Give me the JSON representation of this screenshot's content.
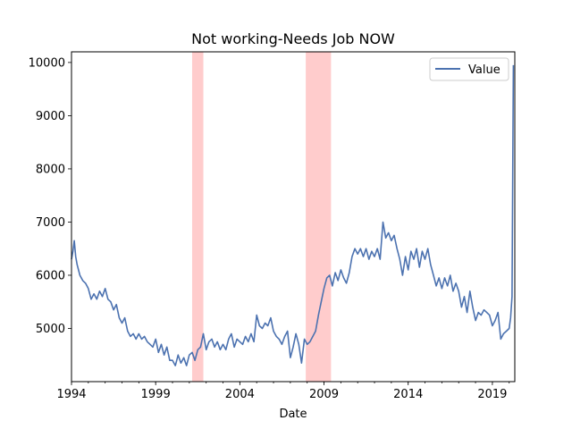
{
  "chart_data": {
    "type": "line",
    "title": "Not working-Needs Job NOW",
    "xlabel": "Date",
    "ylabel": "",
    "x_range": [
      "1994-01",
      "2020-05"
    ],
    "ylim": [
      4000,
      10200
    ],
    "x_ticks": [
      {
        "label": "1994",
        "date": "1994-01"
      },
      {
        "label": "1999",
        "date": "1999-01"
      },
      {
        "label": "2004",
        "date": "2004-01"
      },
      {
        "label": "2009",
        "date": "2009-01"
      },
      {
        "label": "2014",
        "date": "2014-01"
      },
      {
        "label": "2019",
        "date": "2019-01"
      }
    ],
    "y_ticks": [
      5000,
      6000,
      7000,
      8000,
      9000,
      10000
    ],
    "grid": false,
    "legend": {
      "location": "upper right",
      "entries": [
        "Value"
      ]
    },
    "recessions": [
      {
        "start": "2001-03",
        "end": "2001-11"
      },
      {
        "start": "2007-12",
        "end": "2009-06"
      }
    ],
    "series": [
      {
        "name": "Value",
        "color": "#4c72b0",
        "points": [
          [
            "1994-01",
            6300
          ],
          [
            "1994-02",
            6450
          ],
          [
            "1994-03",
            6650
          ],
          [
            "1994-04",
            6350
          ],
          [
            "1994-05",
            6200
          ],
          [
            "1994-07",
            6000
          ],
          [
            "1994-09",
            5900
          ],
          [
            "1994-11",
            5850
          ],
          [
            "1995-01",
            5750
          ],
          [
            "1995-03",
            5550
          ],
          [
            "1995-05",
            5650
          ],
          [
            "1995-07",
            5550
          ],
          [
            "1995-09",
            5700
          ],
          [
            "1995-11",
            5600
          ],
          [
            "1996-01",
            5750
          ],
          [
            "1996-03",
            5550
          ],
          [
            "1996-05",
            5500
          ],
          [
            "1996-07",
            5350
          ],
          [
            "1996-09",
            5450
          ],
          [
            "1996-11",
            5200
          ],
          [
            "1997-01",
            5100
          ],
          [
            "1997-03",
            5200
          ],
          [
            "1997-05",
            4950
          ],
          [
            "1997-07",
            4850
          ],
          [
            "1997-09",
            4900
          ],
          [
            "1997-11",
            4800
          ],
          [
            "1998-01",
            4900
          ],
          [
            "1998-03",
            4800
          ],
          [
            "1998-05",
            4850
          ],
          [
            "1998-07",
            4750
          ],
          [
            "1998-09",
            4700
          ],
          [
            "1998-11",
            4650
          ],
          [
            "1999-01",
            4800
          ],
          [
            "1999-03",
            4550
          ],
          [
            "1999-05",
            4700
          ],
          [
            "1999-07",
            4500
          ],
          [
            "1999-09",
            4650
          ],
          [
            "1999-11",
            4400
          ],
          [
            "2000-01",
            4400
          ],
          [
            "2000-03",
            4300
          ],
          [
            "2000-05",
            4500
          ],
          [
            "2000-07",
            4350
          ],
          [
            "2000-09",
            4450
          ],
          [
            "2000-11",
            4300
          ],
          [
            "2001-01",
            4500
          ],
          [
            "2001-03",
            4550
          ],
          [
            "2001-05",
            4400
          ],
          [
            "2001-07",
            4600
          ],
          [
            "2001-09",
            4650
          ],
          [
            "2001-11",
            4900
          ],
          [
            "2002-01",
            4600
          ],
          [
            "2002-03",
            4750
          ],
          [
            "2002-05",
            4800
          ],
          [
            "2002-07",
            4650
          ],
          [
            "2002-09",
            4750
          ],
          [
            "2002-11",
            4600
          ],
          [
            "2003-01",
            4700
          ],
          [
            "2003-03",
            4600
          ],
          [
            "2003-05",
            4800
          ],
          [
            "2003-07",
            4900
          ],
          [
            "2003-09",
            4650
          ],
          [
            "2003-11",
            4800
          ],
          [
            "2004-01",
            4750
          ],
          [
            "2004-03",
            4700
          ],
          [
            "2004-05",
            4850
          ],
          [
            "2004-07",
            4750
          ],
          [
            "2004-09",
            4900
          ],
          [
            "2004-11",
            4750
          ],
          [
            "2005-01",
            5250
          ],
          [
            "2005-03",
            5050
          ],
          [
            "2005-05",
            5000
          ],
          [
            "2005-07",
            5100
          ],
          [
            "2005-09",
            5050
          ],
          [
            "2005-11",
            5200
          ],
          [
            "2006-01",
            4950
          ],
          [
            "2006-03",
            4850
          ],
          [
            "2006-05",
            4800
          ],
          [
            "2006-07",
            4700
          ],
          [
            "2006-09",
            4850
          ],
          [
            "2006-11",
            4950
          ],
          [
            "2007-01",
            4450
          ],
          [
            "2007-03",
            4650
          ],
          [
            "2007-05",
            4900
          ],
          [
            "2007-07",
            4700
          ],
          [
            "2007-09",
            4350
          ],
          [
            "2007-11",
            4800
          ],
          [
            "2008-01",
            4700
          ],
          [
            "2008-03",
            4750
          ],
          [
            "2008-05",
            4850
          ],
          [
            "2008-07",
            4950
          ],
          [
            "2008-09",
            5250
          ],
          [
            "2008-11",
            5500
          ],
          [
            "2009-01",
            5750
          ],
          [
            "2009-03",
            5950
          ],
          [
            "2009-05",
            6000
          ],
          [
            "2009-07",
            5800
          ],
          [
            "2009-09",
            6050
          ],
          [
            "2009-11",
            5900
          ],
          [
            "2010-01",
            6100
          ],
          [
            "2010-03",
            5950
          ],
          [
            "2010-05",
            5850
          ],
          [
            "2010-07",
            6050
          ],
          [
            "2010-09",
            6350
          ],
          [
            "2010-11",
            6500
          ],
          [
            "2011-01",
            6400
          ],
          [
            "2011-03",
            6500
          ],
          [
            "2011-05",
            6350
          ],
          [
            "2011-07",
            6500
          ],
          [
            "2011-09",
            6300
          ],
          [
            "2011-11",
            6450
          ],
          [
            "2012-01",
            6350
          ],
          [
            "2012-03",
            6500
          ],
          [
            "2012-05",
            6300
          ],
          [
            "2012-07",
            7000
          ],
          [
            "2012-09",
            6700
          ],
          [
            "2012-11",
            6800
          ],
          [
            "2013-01",
            6650
          ],
          [
            "2013-03",
            6750
          ],
          [
            "2013-05",
            6500
          ],
          [
            "2013-07",
            6300
          ],
          [
            "2013-09",
            6000
          ],
          [
            "2013-11",
            6350
          ],
          [
            "2014-01",
            6100
          ],
          [
            "2014-03",
            6450
          ],
          [
            "2014-05",
            6300
          ],
          [
            "2014-07",
            6500
          ],
          [
            "2014-09",
            6150
          ],
          [
            "2014-11",
            6450
          ],
          [
            "2015-01",
            6300
          ],
          [
            "2015-03",
            6500
          ],
          [
            "2015-05",
            6200
          ],
          [
            "2015-07",
            6000
          ],
          [
            "2015-09",
            5800
          ],
          [
            "2015-11",
            5950
          ],
          [
            "2016-01",
            5750
          ],
          [
            "2016-03",
            5950
          ],
          [
            "2016-05",
            5800
          ],
          [
            "2016-07",
            6000
          ],
          [
            "2016-09",
            5700
          ],
          [
            "2016-11",
            5850
          ],
          [
            "2017-01",
            5700
          ],
          [
            "2017-03",
            5400
          ],
          [
            "2017-05",
            5600
          ],
          [
            "2017-07",
            5300
          ],
          [
            "2017-09",
            5700
          ],
          [
            "2017-11",
            5400
          ],
          [
            "2018-01",
            5150
          ],
          [
            "2018-03",
            5300
          ],
          [
            "2018-05",
            5250
          ],
          [
            "2018-07",
            5350
          ],
          [
            "2018-09",
            5300
          ],
          [
            "2018-11",
            5250
          ],
          [
            "2019-01",
            5050
          ],
          [
            "2019-03",
            5150
          ],
          [
            "2019-05",
            5300
          ],
          [
            "2019-07",
            4800
          ],
          [
            "2019-09",
            4900
          ],
          [
            "2019-11",
            4950
          ],
          [
            "2020-01",
            5000
          ],
          [
            "2020-02",
            5200
          ],
          [
            "2020-03",
            5600
          ],
          [
            "2020-04",
            9950
          ]
        ]
      }
    ]
  }
}
